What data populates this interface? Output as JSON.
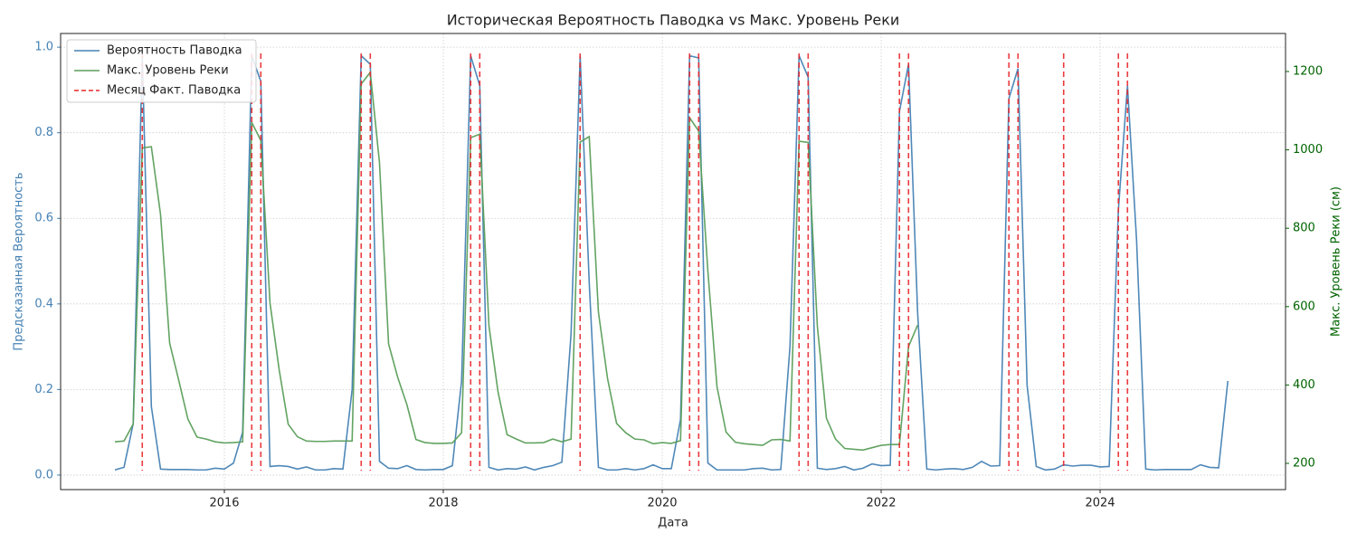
{
  "chart_data": {
    "type": "line",
    "title": "Историческая Вероятность Паводка vs Макс. Уровень Реки",
    "x_label": "Дата",
    "y_label": "Предсказанная Вероятность",
    "y2_label": "Макс. Уровень Реки (см)",
    "y_label_color": "#4682b4",
    "y2_label_color": "#006400",
    "grid": true,
    "legend": "upper left",
    "xlim": [
      2014.504,
      2025.694
    ],
    "xticks": [
      2016,
      2018,
      2020,
      2022,
      2024
    ],
    "ylim": [
      -0.034,
      1.032
    ],
    "yticks": [
      {
        "value": 0,
        "label": "0.0"
      },
      0.2,
      0.4,
      0.6,
      0.8,
      {
        "value": 1,
        "label": "1.0"
      }
    ],
    "y2lim": [
      133,
      1297
    ],
    "y2ticks": [
      200,
      400,
      600,
      800,
      1000,
      1200
    ],
    "x": [
      2015,
      2015.083,
      2015.167,
      2015.25,
      2015.333,
      2015.417,
      2015.5,
      2015.583,
      2015.667,
      2015.75,
      2015.833,
      2015.917,
      2016,
      2016.083,
      2016.167,
      2016.25,
      2016.333,
      2016.417,
      2016.5,
      2016.583,
      2016.667,
      2016.75,
      2016.833,
      2016.917,
      2017,
      2017.083,
      2017.167,
      2017.25,
      2017.333,
      2017.417,
      2017.5,
      2017.583,
      2017.667,
      2017.75,
      2017.833,
      2017.917,
      2018,
      2018.083,
      2018.167,
      2018.25,
      2018.333,
      2018.417,
      2018.5,
      2018.583,
      2018.667,
      2018.75,
      2018.833,
      2018.917,
      2019,
      2019.083,
      2019.167,
      2019.25,
      2019.333,
      2019.417,
      2019.5,
      2019.583,
      2019.667,
      2019.75,
      2019.833,
      2019.917,
      2020,
      2020.083,
      2020.167,
      2020.25,
      2020.333,
      2020.417,
      2020.5,
      2020.583,
      2020.667,
      2020.75,
      2020.833,
      2020.917,
      2021,
      2021.083,
      2021.167,
      2021.25,
      2021.333,
      2021.417,
      2021.5,
      2021.583,
      2021.667,
      2021.75,
      2021.833,
      2021.917,
      2022,
      2022.083,
      2022.167,
      2022.25,
      2022.333,
      2022.417,
      2022.5,
      2022.583,
      2022.667,
      2022.75,
      2022.833,
      2022.917,
      2023,
      2023.083,
      2023.167,
      2023.25,
      2023.333,
      2023.417,
      2023.5,
      2023.583,
      2023.667,
      2023.75,
      2023.833,
      2023.917,
      2024,
      2024.083,
      2024.167,
      2024.25,
      2024.333,
      2024.417,
      2024.5,
      2024.583,
      2024.667,
      2024.75,
      2024.833,
      2024.917,
      2025,
      2025.083,
      2025.167
    ],
    "series": [
      {
        "name": "Вероятность Паводка",
        "color": "#4682b4",
        "axis": "y",
        "values": [
          0.012,
          0.018,
          0.12,
          0.98,
          0.16,
          0.014,
          0.013,
          0.013,
          0.013,
          0.012,
          0.012,
          0.016,
          0.014,
          0.028,
          0.1,
          0.98,
          0.92,
          0.02,
          0.022,
          0.02,
          0.014,
          0.019,
          0.012,
          0.012,
          0.015,
          0.014,
          0.2,
          0.98,
          0.96,
          0.032,
          0.016,
          0.015,
          0.022,
          0.013,
          0.012,
          0.013,
          0.013,
          0.022,
          0.22,
          0.98,
          0.91,
          0.018,
          0.012,
          0.015,
          0.014,
          0.019,
          0.012,
          0.018,
          0.022,
          0.03,
          0.33,
          0.98,
          0.45,
          0.018,
          0.012,
          0.012,
          0.015,
          0.012,
          0.015,
          0.024,
          0.015,
          0.015,
          0.13,
          0.98,
          0.975,
          0.028,
          0.012,
          0.012,
          0.012,
          0.012,
          0.015,
          0.016,
          0.012,
          0.013,
          0.3,
          0.98,
          0.93,
          0.016,
          0.013,
          0.015,
          0.02,
          0.012,
          0.016,
          0.026,
          0.022,
          0.023,
          0.85,
          0.96,
          0.38,
          0.014,
          0.012,
          0.014,
          0.015,
          0.013,
          0.018,
          0.032,
          0.021,
          0.022,
          0.88,
          0.95,
          0.21,
          0.02,
          0.012,
          0.014,
          0.024,
          0.021,
          0.023,
          0.023,
          0.019,
          0.02,
          0.62,
          0.91,
          0.55,
          0.014,
          0.012,
          0.013,
          0.013,
          0.013,
          0.013,
          0.024,
          0.018,
          0.017,
          0.22
        ]
      },
      {
        "name": "Макс. Уровень Реки",
        "color": "#5a9e5a",
        "axis": "y2",
        "values": [
          255,
          257,
          300,
          1005,
          1008,
          835,
          507,
          412,
          313,
          267,
          262,
          255,
          252,
          253,
          255,
          1070,
          1024,
          609,
          440,
          300,
          268,
          257,
          256,
          256,
          257,
          257,
          257,
          1168,
          1198,
          967,
          505,
          420,
          350,
          261,
          253,
          251,
          251,
          252,
          278,
          1031,
          1040,
          551,
          382,
          273,
          262,
          252,
          252,
          253,
          262,
          255,
          262,
          1020,
          1034,
          586,
          417,
          302,
          278,
          262,
          260,
          250,
          253,
          251,
          258,
          1082,
          1048,
          690,
          396,
          280,
          254,
          250,
          248,
          246,
          260,
          261,
          257,
          1022,
          1019,
          550,
          315,
          262,
          238,
          236,
          234,
          240,
          246,
          248,
          248,
          498,
          553,
          null,
          null,
          null,
          null,
          null,
          null,
          null,
          null,
          null,
          null,
          null,
          null,
          null,
          null,
          null,
          null,
          null,
          null,
          null,
          null,
          null,
          null,
          null,
          null,
          null,
          null,
          null,
          null,
          null,
          null,
          null,
          null,
          null,
          null
        ]
      }
    ],
    "flood_months": {
      "name": "Месяц Факт. Паводка",
      "color": "#e8262a",
      "x": [
        2015.25,
        2016.25,
        2016.333,
        2017.25,
        2017.333,
        2018.25,
        2018.333,
        2019.25,
        2020.25,
        2020.333,
        2021.25,
        2021.333,
        2022.167,
        2022.25,
        2023.167,
        2023.25,
        2023.667,
        2024.167,
        2024.25
      ]
    }
  }
}
